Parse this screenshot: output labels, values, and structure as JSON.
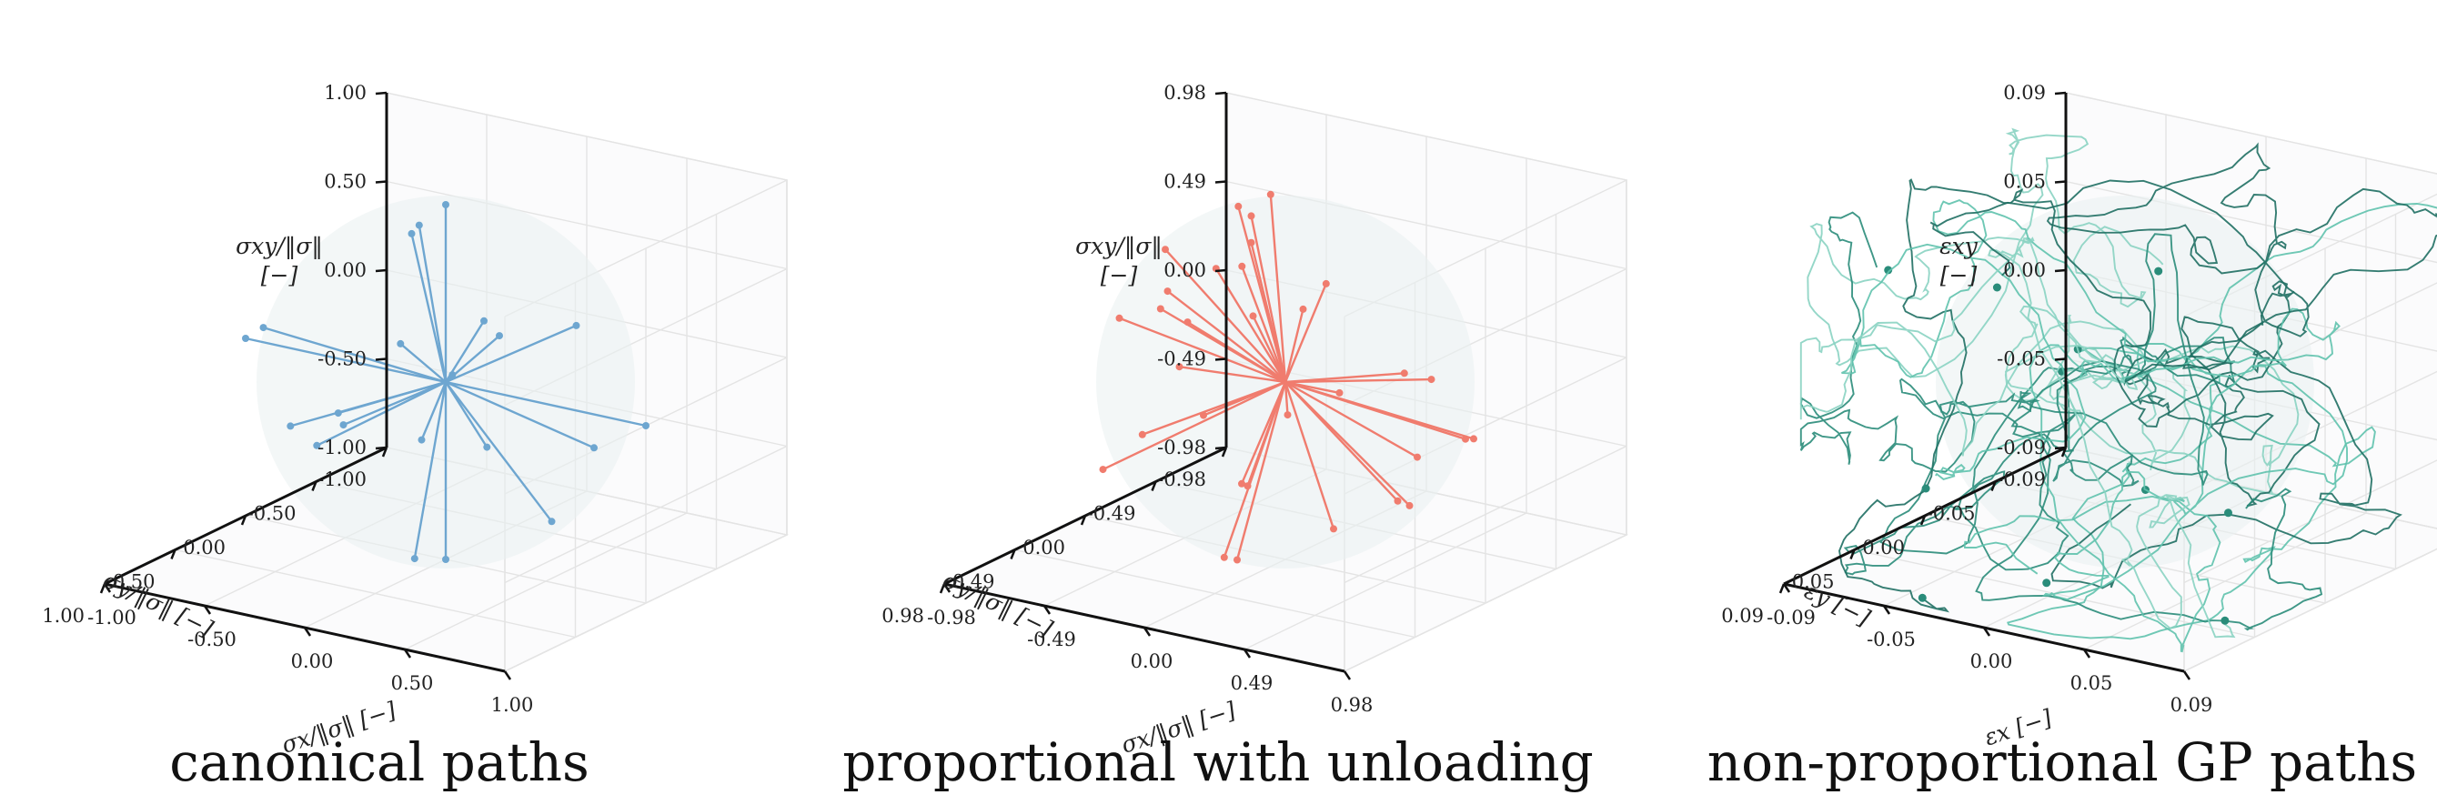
{
  "chart_data": [
    {
      "type": "line3d",
      "title": "canonical paths",
      "xlabel": "σx/‖σ‖ [−]",
      "ylabel": "σy/‖σ‖ [−]",
      "zlabel_line1": "σxy/‖σ‖",
      "zlabel_line2": "[−]",
      "x_ticks": [
        "-1.00",
        "-0.50",
        "0.00",
        "0.50",
        "1.00"
      ],
      "y_ticks": [
        "-1.00",
        "-0.50",
        "0.00",
        "0.50",
        "1.00"
      ],
      "z_ticks": [
        "-1.00",
        "-0.50",
        "0.00",
        "0.50",
        "1.00"
      ],
      "range": [
        -1,
        1
      ],
      "color": "#6ea6d0",
      "style": "rays",
      "endpoints": [
        [
          0,
          0,
          1.0
        ],
        [
          0.1,
          0.1,
          0.85
        ],
        [
          0.45,
          -0.45,
          0.6
        ],
        [
          -0.55,
          0.4,
          0.55
        ],
        [
          0.7,
          0.3,
          0.25
        ],
        [
          -0.35,
          0.45,
          0.3
        ],
        [
          0.05,
          0.25,
          0.3
        ],
        [
          -0.05,
          -0.2,
          0.28
        ],
        [
          1.0,
          0.0,
          0.0
        ],
        [
          -1.0,
          0.0,
          0.0
        ],
        [
          0.15,
          0.55,
          0.0
        ],
        [
          0.6,
          0.25,
          -0.3
        ],
        [
          -0.6,
          -0.2,
          -0.3
        ],
        [
          0.05,
          0.1,
          -0.3
        ],
        [
          -0.1,
          -0.15,
          -0.4
        ],
        [
          0.75,
          -0.15,
          -0.6
        ],
        [
          -0.6,
          0.1,
          -0.6
        ],
        [
          0.05,
          0.15,
          -0.95
        ],
        [
          0.0,
          0.0,
          -1.0
        ],
        [
          0.3,
          0.3,
          -0.2
        ],
        [
          -0.3,
          -0.5,
          0.2
        ]
      ]
    },
    {
      "type": "line3d",
      "title": "proportional with unloading",
      "xlabel": "σx/‖σ‖ [−]",
      "ylabel": "σy/‖σ‖ [−]",
      "zlabel_line1": "σxy/‖σ‖",
      "zlabel_line2": "[−]",
      "x_ticks": [
        "-0.98",
        "-0.49",
        "0.00",
        "0.49",
        "0.98"
      ],
      "y_ticks": [
        "-0.98",
        "-0.49",
        "0.00",
        "0.49",
        "0.98"
      ],
      "z_ticks": [
        "-0.98",
        "-0.49",
        "0.00",
        "0.49",
        "0.98"
      ],
      "range": [
        -0.98,
        0.98
      ],
      "color": "#f07c6e",
      "style": "rays",
      "endpoints": [
        [
          0.1,
          0.1,
          0.95
        ],
        [
          0.2,
          0.05,
          0.96
        ],
        [
          0.25,
          -0.25,
          0.9
        ],
        [
          -0.1,
          0.45,
          0.85
        ],
        [
          -0.45,
          0.35,
          0.8
        ],
        [
          0.1,
          0.35,
          0.75
        ],
        [
          -0.3,
          0.3,
          0.6
        ],
        [
          0.6,
          0.0,
          0.6
        ],
        [
          -0.05,
          0.3,
          0.5
        ],
        [
          0.1,
          0.1,
          0.8
        ],
        [
          -0.8,
          0.1,
          0.25
        ],
        [
          -0.7,
          0.15,
          0.28
        ],
        [
          0.8,
          -0.3,
          0.2
        ],
        [
          0.7,
          -0.3,
          0.05
        ],
        [
          0.8,
          -0.25,
          0.12
        ],
        [
          0.9,
          -0.1,
          0.1
        ],
        [
          -0.9,
          0.0,
          -0.1
        ],
        [
          -0.8,
          0.2,
          -0.15
        ],
        [
          0.6,
          -0.1,
          -0.1
        ],
        [
          -0.2,
          -0.1,
          -0.05
        ],
        [
          -0.8,
          -0.2,
          -0.2
        ],
        [
          0.2,
          -0.3,
          -0.35
        ],
        [
          0.55,
          -0.2,
          -0.4
        ],
        [
          0.75,
          -0.05,
          -0.5
        ],
        [
          -0.55,
          -0.1,
          -0.6
        ],
        [
          -0.35,
          -0.3,
          -0.7
        ],
        [
          0.4,
          -0.3,
          -0.8
        ],
        [
          0.5,
          -0.4,
          -0.85
        ],
        [
          0.1,
          0.2,
          -0.95
        ],
        [
          0.2,
          0.15,
          -0.98
        ],
        [
          0.7,
          0.3,
          -0.55
        ],
        [
          -0.1,
          -0.2,
          -0.88
        ]
      ]
    },
    {
      "type": "line3d",
      "title": "non-proportional GP paths",
      "xlabel": "εx [−]",
      "ylabel": "εy [−]",
      "zlabel_line1": "εxy",
      "zlabel_line2": "[−]",
      "x_ticks": [
        "-0.09",
        "-0.05",
        "0.00",
        "0.05",
        "0.09"
      ],
      "y_ticks": [
        "-0.09",
        "-0.05",
        "0.00",
        "0.05",
        "0.09"
      ],
      "z_ticks": [
        "-0.09",
        "-0.05",
        "0.00",
        "0.05",
        "0.09"
      ],
      "range": [
        -0.09,
        0.09
      ],
      "colors": [
        "#2a8c7a",
        "#5fc2ad",
        "#8ad3c2",
        "#1f6f63"
      ],
      "style": "random-paths",
      "path_count": 12
    }
  ]
}
